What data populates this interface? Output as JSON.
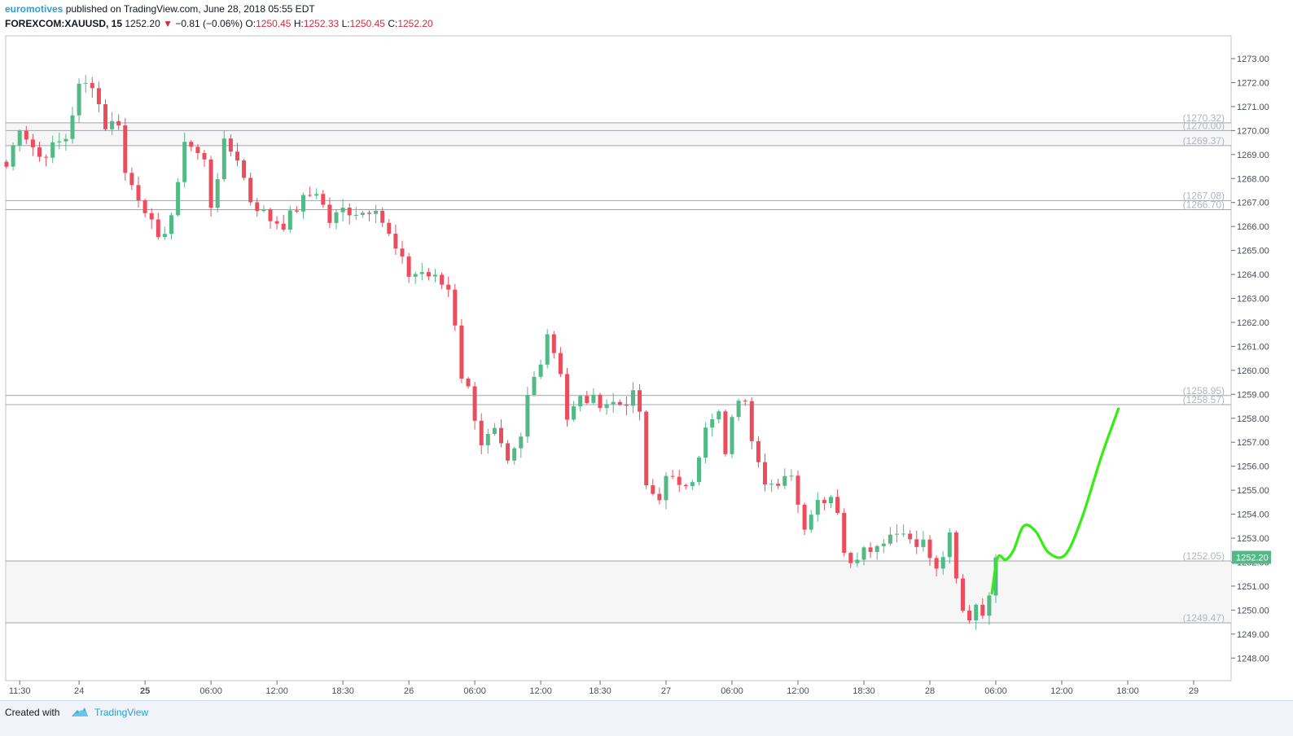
{
  "header": {
    "author": "euromotives",
    "published_text": "published on TradingView.com, June 28, 2018 05:55 EDT",
    "symbol": "FOREXCOM:XAUUSD, 15",
    "last": "1252.20",
    "arrow": "▼",
    "change": "−0.81 (−0.06%)",
    "o_label": "O:",
    "o_value": "1250.45",
    "h_label": "H:",
    "h_value": "1252.33",
    "l_label": "L:",
    "l_value": "1250.45",
    "c_label": "C:",
    "c_value": "1252.20"
  },
  "footer": {
    "created_with": "Created with",
    "brand": "TradingView",
    "logo_icon": "tradingview-cloud-icon"
  },
  "colors": {
    "up": "#53b987",
    "down": "#eb4d5c",
    "projection": "#33ee11",
    "level_line": "#a0a4ab",
    "zone_fill": "#f6f6f6",
    "price_tag": "#53b987",
    "author": "#2a9fd6"
  },
  "chart_data": {
    "type": "candlestick",
    "symbol": "FOREXCOM:XAUUSD",
    "interval": "15",
    "ylim": [
      1247.5,
      1273.5
    ],
    "y_ticks": [
      1248,
      1249,
      1250,
      1251,
      1252,
      1253,
      1254,
      1255,
      1256,
      1257,
      1258,
      1259,
      1260,
      1261,
      1262,
      1263,
      1264,
      1265,
      1266,
      1267,
      1268,
      1269,
      1270,
      1271,
      1272,
      1273
    ],
    "x_ticks": [
      {
        "label": "11:30",
        "bar": 2,
        "bold": false
      },
      {
        "label": "24",
        "bar": 11,
        "bold": false
      },
      {
        "label": "25",
        "bar": 21,
        "bold": true
      },
      {
        "label": "06:00",
        "bar": 31,
        "bold": false
      },
      {
        "label": "12:00",
        "bar": 41,
        "bold": false
      },
      {
        "label": "18:30",
        "bar": 51,
        "bold": false
      },
      {
        "label": "26",
        "bar": 61,
        "bold": false
      },
      {
        "label": "06:00",
        "bar": 71,
        "bold": false
      },
      {
        "label": "12:00",
        "bar": 81,
        "bold": false
      },
      {
        "label": "18:30",
        "bar": 90,
        "bold": false
      },
      {
        "label": "27",
        "bar": 100,
        "bold": false
      },
      {
        "label": "06:00",
        "bar": 110,
        "bold": false
      },
      {
        "label": "12:00",
        "bar": 120,
        "bold": false
      },
      {
        "label": "18:30",
        "bar": 130,
        "bold": false
      },
      {
        "label": "28",
        "bar": 140,
        "bold": false
      },
      {
        "label": "06:00",
        "bar": 150,
        "bold": false
      },
      {
        "label": "12:00",
        "bar": 160,
        "bold": false
      },
      {
        "label": "18:00",
        "bar": 170,
        "bold": false
      },
      {
        "label": "29",
        "bar": 180,
        "bold": false
      }
    ],
    "levels": [
      {
        "value": 1270.32,
        "label": "(1270.32)"
      },
      {
        "value": 1270.0,
        "label": "(1270.00)"
      },
      {
        "value": 1269.37,
        "label": "(1269.37)"
      },
      {
        "value": 1267.08,
        "label": "(1267.08)"
      },
      {
        "value": 1266.7,
        "label": "(1266.70)"
      },
      {
        "value": 1258.95,
        "label": "(1258.95)"
      },
      {
        "value": 1258.57,
        "label": "(1258.57)"
      },
      {
        "value": 1252.05,
        "label": "(1252.05)"
      },
      {
        "value": 1249.47,
        "label": "(1249.47)"
      }
    ],
    "zones": [
      {
        "from": 1269.37,
        "to": 1270.32
      },
      {
        "from": 1249.47,
        "to": 1252.05
      }
    ],
    "last_price": "1252.20",
    "last_price_value": 1252.2,
    "waypoints": [
      {
        "bar": 0,
        "price": 1268.5
      },
      {
        "bar": 2,
        "price": 1270.2
      },
      {
        "bar": 5,
        "price": 1268.9
      },
      {
        "bar": 9,
        "price": 1269.7
      },
      {
        "bar": 11,
        "price": 1271.8
      },
      {
        "bar": 13,
        "price": 1272.0
      },
      {
        "bar": 15,
        "price": 1270.2
      },
      {
        "bar": 17,
        "price": 1270.4
      },
      {
        "bar": 18,
        "price": 1268.2
      },
      {
        "bar": 21,
        "price": 1266.8
      },
      {
        "bar": 23,
        "price": 1265.3
      },
      {
        "bar": 25,
        "price": 1266.5
      },
      {
        "bar": 26,
        "price": 1267.6
      },
      {
        "bar": 27,
        "price": 1269.7
      },
      {
        "bar": 30,
        "price": 1268.7
      },
      {
        "bar": 31,
        "price": 1266.9
      },
      {
        "bar": 33,
        "price": 1269.4
      },
      {
        "bar": 35,
        "price": 1268.9
      },
      {
        "bar": 37,
        "price": 1267.1
      },
      {
        "bar": 40,
        "price": 1266.3
      },
      {
        "bar": 42,
        "price": 1266.1
      },
      {
        "bar": 45,
        "price": 1267.1
      },
      {
        "bar": 47,
        "price": 1267.5
      },
      {
        "bar": 49,
        "price": 1266.2
      },
      {
        "bar": 51,
        "price": 1266.7
      },
      {
        "bar": 54,
        "price": 1266.6
      },
      {
        "bar": 56,
        "price": 1266.9
      },
      {
        "bar": 57,
        "price": 1266.2
      },
      {
        "bar": 59,
        "price": 1265.0
      },
      {
        "bar": 61,
        "price": 1264.0
      },
      {
        "bar": 63,
        "price": 1264.1
      },
      {
        "bar": 65,
        "price": 1263.8
      },
      {
        "bar": 67,
        "price": 1263.4
      },
      {
        "bar": 68,
        "price": 1262.0
      },
      {
        "bar": 69,
        "price": 1259.8
      },
      {
        "bar": 70,
        "price": 1259.2
      },
      {
        "bar": 72,
        "price": 1257.0
      },
      {
        "bar": 74,
        "price": 1257.4
      },
      {
        "bar": 76,
        "price": 1256.0
      },
      {
        "bar": 78,
        "price": 1257.1
      },
      {
        "bar": 79,
        "price": 1258.9
      },
      {
        "bar": 81,
        "price": 1260.5
      },
      {
        "bar": 82,
        "price": 1261.6
      },
      {
        "bar": 84,
        "price": 1260.0
      },
      {
        "bar": 85,
        "price": 1258.0
      },
      {
        "bar": 87,
        "price": 1258.8
      },
      {
        "bar": 90,
        "price": 1258.7
      },
      {
        "bar": 93,
        "price": 1258.6
      },
      {
        "bar": 95,
        "price": 1258.9
      },
      {
        "bar": 96,
        "price": 1258.3
      },
      {
        "bar": 97,
        "price": 1255.0
      },
      {
        "bar": 99,
        "price": 1254.6
      },
      {
        "bar": 100,
        "price": 1255.8
      },
      {
        "bar": 102,
        "price": 1255.0
      },
      {
        "bar": 104,
        "price": 1255.6
      },
      {
        "bar": 106,
        "price": 1257.5
      },
      {
        "bar": 108,
        "price": 1258.2
      },
      {
        "bar": 109,
        "price": 1256.3
      },
      {
        "bar": 110,
        "price": 1258.2
      },
      {
        "bar": 112,
        "price": 1258.9
      },
      {
        "bar": 113,
        "price": 1257.3
      },
      {
        "bar": 115,
        "price": 1255.5
      },
      {
        "bar": 117,
        "price": 1255.0
      },
      {
        "bar": 119,
        "price": 1255.8
      },
      {
        "bar": 120,
        "price": 1254.4
      },
      {
        "bar": 121,
        "price": 1253.6
      },
      {
        "bar": 123,
        "price": 1254.6
      },
      {
        "bar": 125,
        "price": 1254.8
      },
      {
        "bar": 126,
        "price": 1254.2
      },
      {
        "bar": 127,
        "price": 1252.5
      },
      {
        "bar": 128,
        "price": 1251.8
      },
      {
        "bar": 130,
        "price": 1252.8
      },
      {
        "bar": 132,
        "price": 1252.6
      },
      {
        "bar": 133,
        "price": 1253.0
      },
      {
        "bar": 135,
        "price": 1253.4
      },
      {
        "bar": 137,
        "price": 1253.0
      },
      {
        "bar": 139,
        "price": 1252.8
      },
      {
        "bar": 141,
        "price": 1251.6
      },
      {
        "bar": 143,
        "price": 1253.0
      },
      {
        "bar": 144,
        "price": 1251.2
      },
      {
        "bar": 145,
        "price": 1249.9
      },
      {
        "bar": 146,
        "price": 1249.7
      },
      {
        "bar": 147,
        "price": 1250.3
      },
      {
        "bar": 148,
        "price": 1250.0
      },
      {
        "bar": 149,
        "price": 1250.4
      },
      {
        "bar": 150,
        "price": 1252.2
      }
    ],
    "projection": [
      {
        "bar": 149.4,
        "price": 1250.7
      },
      {
        "bar": 150.3,
        "price": 1252.2
      },
      {
        "bar": 151.5,
        "price": 1252.1
      },
      {
        "bar": 152.7,
        "price": 1252.5
      },
      {
        "bar": 154.2,
        "price": 1253.5
      },
      {
        "bar": 156.0,
        "price": 1253.3
      },
      {
        "bar": 158.0,
        "price": 1252.4
      },
      {
        "bar": 160.5,
        "price": 1252.3
      },
      {
        "bar": 163.0,
        "price": 1253.8
      },
      {
        "bar": 166.0,
        "price": 1256.4
      },
      {
        "bar": 168.6,
        "price": 1258.4
      }
    ]
  }
}
